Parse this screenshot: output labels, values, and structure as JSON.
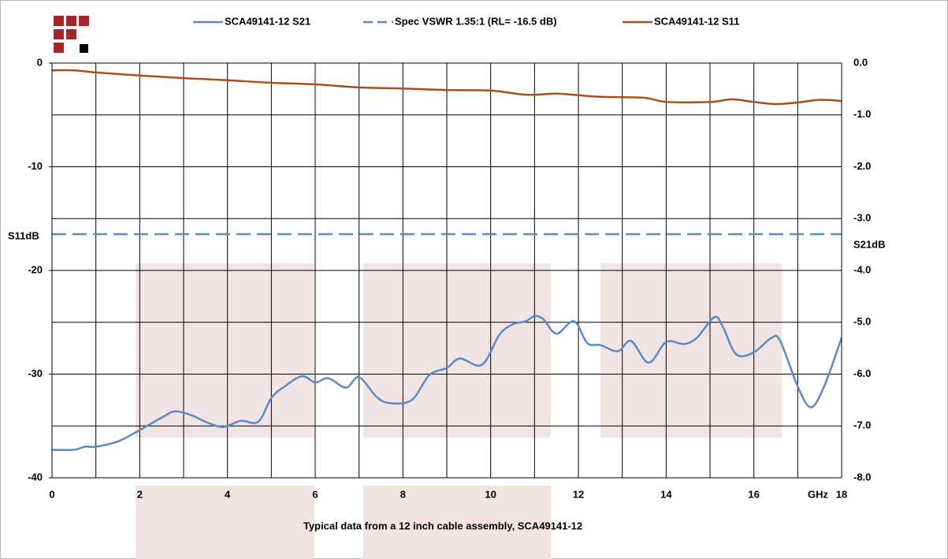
{
  "chart_data": {
    "type": "line",
    "legend": "top",
    "grid": true,
    "x_axis_label": "GHz",
    "y_axis_label": "S11dB",
    "y2_axis_label": "S21dB",
    "annotation": "Typical data from a  12 inch cable assembly, SCA49141-12",
    "xlim": [
      0,
      18
    ],
    "xticks": [
      0,
      2,
      4,
      6,
      8,
      10,
      12,
      14,
      16,
      18
    ],
    "x_minor_ticks": [
      1,
      3,
      5,
      7,
      9,
      11,
      13,
      15,
      17
    ],
    "ylim": [
      -40,
      0
    ],
    "yticks": [
      0,
      -10,
      -20,
      -30,
      -40
    ],
    "y2lim": [
      -8,
      0
    ],
    "y2ticks": [
      {
        "value": 0,
        "label": "0.0"
      },
      {
        "value": -1,
        "label": "-1.0"
      },
      {
        "value": -2,
        "label": "-2.0"
      },
      {
        "value": -3,
        "label": "-3.0"
      },
      {
        "value": -4,
        "label": "-4.0"
      },
      {
        "value": -5,
        "label": "-5.0"
      },
      {
        "value": -6,
        "label": "-6.0"
      },
      {
        "value": -7,
        "label": "-7.0"
      },
      {
        "value": -8,
        "label": "-8.0"
      }
    ],
    "series": [
      {
        "name": "SCA49141-12 S21",
        "color": "#5b8ac6",
        "dash": false,
        "x": [
          0,
          0.5,
          0.75,
          1.0,
          1.5,
          2.0,
          2.5,
          2.8,
          3.2,
          3.5,
          3.9,
          4.3,
          4.7,
          5.0,
          5.3,
          5.7,
          6.0,
          6.3,
          6.7,
          7.0,
          7.4,
          7.7,
          8.2,
          8.6,
          9.0,
          9.3,
          9.8,
          10.2,
          10.5,
          10.8,
          11.0,
          11.2,
          11.5,
          11.9,
          12.2,
          12.5,
          12.9,
          13.2,
          13.6,
          14.0,
          14.4,
          14.7,
          15.1,
          15.3,
          15.6,
          16.0,
          16.4,
          16.6,
          17.0,
          17.3,
          17.6,
          18.0
        ],
        "values": [
          -37.3,
          -37.3,
          -37.0,
          -37.0,
          -36.5,
          -35.4,
          -34.2,
          -33.6,
          -34.0,
          -34.6,
          -35.1,
          -34.5,
          -34.6,
          -32.3,
          -31.2,
          -30.2,
          -30.8,
          -30.4,
          -31.3,
          -30.3,
          -32.2,
          -32.8,
          -32.5,
          -30.1,
          -29.4,
          -28.5,
          -29.1,
          -26.2,
          -25.2,
          -24.9,
          -24.4,
          -24.7,
          -26.1,
          -24.9,
          -27.0,
          -27.2,
          -27.8,
          -26.8,
          -28.9,
          -26.9,
          -27.1,
          -26.5,
          -24.5,
          -25.5,
          -28.1,
          -27.9,
          -26.5,
          -26.8,
          -31.2,
          -33.2,
          -31.2,
          -26.5
        ]
      },
      {
        "name": "Spec VSWR 1.35:1 (RL= -16.5 dB)",
        "color": "#5b8ac6",
        "dash": true,
        "x": [
          0,
          18
        ],
        "values": [
          -16.5,
          -16.5
        ]
      },
      {
        "name": "SCA49141-12 S11",
        "color": "#a5511a",
        "dash": false,
        "axis": "y2",
        "x": [
          0,
          0.5,
          1.0,
          2.0,
          3.0,
          4.0,
          5.0,
          6.0,
          7.0,
          8.0,
          9.0,
          10.0,
          10.8,
          11.5,
          12.0,
          12.5,
          13.5,
          14.0,
          15.0,
          15.5,
          16.0,
          16.5,
          17.0,
          17.5,
          18.0
        ],
        "values": [
          -0.14,
          -0.14,
          -0.18,
          -0.24,
          -0.29,
          -0.33,
          -0.38,
          -0.41,
          -0.47,
          -0.49,
          -0.52,
          -0.53,
          -0.61,
          -0.59,
          -0.62,
          -0.65,
          -0.67,
          -0.75,
          -0.75,
          -0.7,
          -0.75,
          -0.79,
          -0.76,
          -0.71,
          -0.73
        ]
      }
    ]
  }
}
